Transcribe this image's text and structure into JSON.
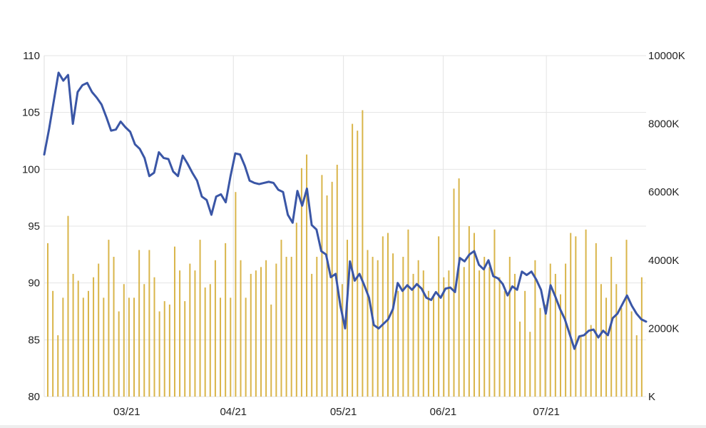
{
  "chart_data": {
    "type": "line",
    "title": "",
    "grid": true,
    "legend": "none",
    "x_range": [
      "02/05",
      "07/30"
    ],
    "x_ticks": [
      {
        "label": "03/21",
        "date": "03/01"
      },
      {
        "label": "04/21",
        "date": "04/01"
      },
      {
        "label": "05/21",
        "date": "05/03"
      },
      {
        "label": "06/21",
        "date": "06/01"
      },
      {
        "label": "07/21",
        "date": "07/01"
      }
    ],
    "y_left": {
      "range": [
        80,
        110
      ],
      "ticks": [
        "80",
        "85",
        "90",
        "95",
        "100",
        "105",
        "110"
      ]
    },
    "y_right": {
      "range": [
        0,
        10000
      ],
      "unit": "K",
      "ticks": [
        {
          "label": "K",
          "value": 0
        },
        {
          "label": "2000K",
          "value": 2000
        },
        {
          "label": "4000K",
          "value": 4000
        },
        {
          "label": "6000K",
          "value": 6000
        },
        {
          "label": "8000K",
          "value": 8000
        },
        {
          "label": "10000K",
          "value": 10000
        }
      ]
    },
    "series": [
      {
        "kind": "line",
        "axis": "left",
        "color": "#3a56a6",
        "points": [
          [
            "02/05",
            101.3
          ],
          [
            "02/06",
            103.5
          ],
          [
            "02/07",
            106.0
          ],
          [
            "02/08",
            108.5
          ],
          [
            "02/09",
            107.8
          ],
          [
            "02/10",
            108.3
          ],
          [
            "02/11",
            104.0
          ],
          [
            "02/12",
            106.8
          ],
          [
            "02/13",
            107.4
          ],
          [
            "02/14",
            107.6
          ],
          [
            "02/15",
            106.8
          ],
          [
            "02/16",
            106.3
          ],
          [
            "02/17",
            105.7
          ],
          [
            "02/18",
            104.6
          ],
          [
            "02/19",
            103.4
          ],
          [
            "02/20",
            103.5
          ],
          [
            "02/21",
            104.2
          ],
          [
            "02/22",
            103.7
          ],
          [
            "02/23",
            103.3
          ],
          [
            "02/24",
            102.2
          ],
          [
            "02/25",
            101.8
          ],
          [
            "02/26",
            101.0
          ],
          [
            "02/27",
            99.4
          ],
          [
            "02/28",
            99.7
          ],
          [
            "03/01",
            101.5
          ],
          [
            "03/02",
            101.0
          ],
          [
            "03/03",
            100.9
          ],
          [
            "03/04",
            99.8
          ],
          [
            "03/05",
            99.4
          ],
          [
            "03/06",
            101.2
          ],
          [
            "03/07",
            100.5
          ],
          [
            "03/08",
            99.7
          ],
          [
            "03/09",
            99.0
          ],
          [
            "03/10",
            97.6
          ],
          [
            "03/11",
            97.3
          ],
          [
            "03/12",
            96.0
          ],
          [
            "03/13",
            97.6
          ],
          [
            "03/14",
            97.8
          ],
          [
            "03/15",
            97.1
          ],
          [
            "03/16",
            99.4
          ],
          [
            "03/17",
            101.4
          ],
          [
            "03/18",
            101.3
          ],
          [
            "03/19",
            100.3
          ],
          [
            "03/20",
            99.0
          ],
          [
            "03/21",
            98.8
          ],
          [
            "03/22",
            98.7
          ],
          [
            "03/23",
            98.8
          ],
          [
            "03/24",
            98.9
          ],
          [
            "03/25",
            98.8
          ],
          [
            "03/26",
            98.2
          ],
          [
            "03/27",
            98.0
          ],
          [
            "03/28",
            96.0
          ],
          [
            "03/29",
            95.3
          ],
          [
            "03/30",
            98.1
          ],
          [
            "03/31",
            96.8
          ],
          [
            "04/01",
            98.3
          ],
          [
            "04/02",
            95.1
          ],
          [
            "04/03",
            94.7
          ],
          [
            "04/04",
            92.8
          ],
          [
            "04/05",
            92.5
          ],
          [
            "04/06",
            90.5
          ],
          [
            "04/07",
            90.8
          ],
          [
            "04/08",
            88.0
          ],
          [
            "04/09",
            86.0
          ],
          [
            "04/10",
            91.9
          ],
          [
            "04/11",
            90.2
          ],
          [
            "04/12",
            90.8
          ],
          [
            "04/13",
            89.8
          ],
          [
            "04/14",
            88.7
          ],
          [
            "04/15",
            86.3
          ],
          [
            "04/16",
            86.0
          ],
          [
            "04/17",
            86.4
          ],
          [
            "04/18",
            86.8
          ],
          [
            "04/19",
            87.7
          ],
          [
            "04/20",
            90.0
          ],
          [
            "04/21",
            89.3
          ],
          [
            "04/22",
            89.8
          ],
          [
            "04/23",
            89.4
          ],
          [
            "04/24",
            89.9
          ],
          [
            "04/25",
            89.5
          ],
          [
            "04/26",
            88.7
          ],
          [
            "04/27",
            88.5
          ],
          [
            "04/28",
            89.2
          ],
          [
            "04/29",
            88.7
          ],
          [
            "04/30",
            89.5
          ],
          [
            "05/01",
            89.6
          ],
          [
            "05/02",
            89.2
          ],
          [
            "05/03",
            92.2
          ],
          [
            "05/04",
            91.9
          ],
          [
            "05/05",
            92.5
          ],
          [
            "05/06",
            92.8
          ],
          [
            "05/07",
            91.6
          ],
          [
            "05/08",
            91.2
          ],
          [
            "05/09",
            92.0
          ],
          [
            "05/10",
            90.6
          ],
          [
            "05/11",
            90.4
          ],
          [
            "05/12",
            89.9
          ],
          [
            "05/13",
            88.9
          ],
          [
            "05/14",
            89.7
          ],
          [
            "05/15",
            89.4
          ],
          [
            "05/16",
            91.0
          ],
          [
            "05/17",
            90.7
          ],
          [
            "05/18",
            91.0
          ],
          [
            "05/19",
            90.3
          ],
          [
            "05/20",
            89.4
          ],
          [
            "05/21",
            87.3
          ],
          [
            "05/22",
            89.8
          ],
          [
            "05/23",
            88.8
          ],
          [
            "05/24",
            87.7
          ],
          [
            "05/25",
            86.8
          ],
          [
            "05/26",
            85.5
          ],
          [
            "05/27",
            84.2
          ],
          [
            "05/28",
            85.3
          ],
          [
            "05/29",
            85.4
          ],
          [
            "05/30",
            85.8
          ],
          [
            "05/31",
            85.9
          ],
          [
            "06/01",
            85.2
          ],
          [
            "06/02",
            85.8
          ],
          [
            "06/03",
            85.4
          ],
          [
            "06/04",
            86.9
          ],
          [
            "06/05",
            87.3
          ],
          [
            "06/06",
            88.1
          ],
          [
            "06/07",
            88.9
          ],
          [
            "06/08",
            88.0
          ],
          [
            "06/09",
            87.3
          ],
          [
            "06/10",
            86.8
          ],
          [
            "06/11",
            86.6
          ]
        ]
      },
      {
        "kind": "bar",
        "axis": "right",
        "unit": "K",
        "color": "#d9b54a",
        "values": [
          4500,
          3100,
          1800,
          2900,
          5300,
          3600,
          3400,
          2900,
          3100,
          3500,
          3900,
          2900,
          4600,
          4100,
          2500,
          3300,
          2900,
          2900,
          4300,
          3300,
          4300,
          3500,
          2500,
          2800,
          2700,
          4400,
          3700,
          2800,
          3900,
          3700,
          4600,
          3200,
          3300,
          4000,
          2900,
          4500,
          2900,
          6000,
          4000,
          2900,
          3600,
          3700,
          3800,
          4000,
          2700,
          3900,
          4600,
          4100,
          4100,
          5100,
          6700,
          7100,
          3600,
          4100,
          6500,
          5900,
          6300,
          6800,
          3300,
          4600,
          8000,
          7800,
          8400,
          4300,
          4100,
          4000,
          4700,
          4800,
          4200,
          3100,
          4100,
          4900,
          3600,
          4000,
          3700,
          3100,
          3000,
          4700,
          3500,
          3700,
          6100,
          6400,
          3800,
          5000,
          4800,
          3700,
          4100,
          3800,
          4900,
          3500,
          3100,
          4100,
          3600,
          2200,
          3100,
          1900,
          4000,
          2600,
          2700,
          3900,
          3600,
          3000,
          3900,
          4800,
          4700,
          1800,
          4900,
          2100,
          4500,
          3300,
          2900,
          4100,
          3300,
          2600,
          4600,
          2500,
          1800,
          3500
        ]
      }
    ]
  }
}
